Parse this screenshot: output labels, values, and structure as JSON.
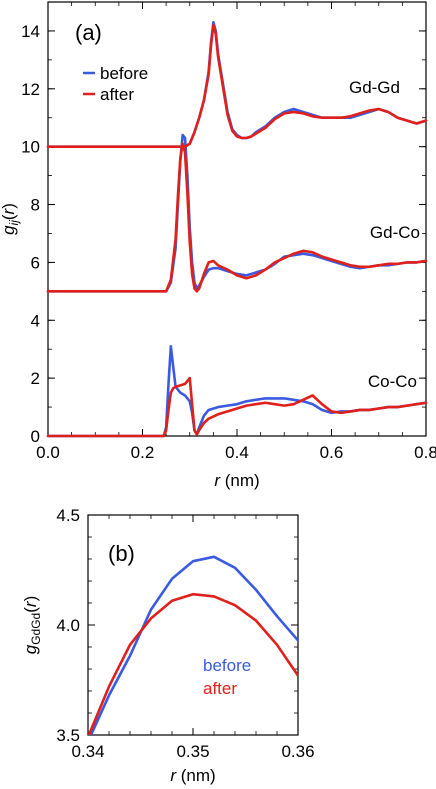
{
  "chart_data": [
    {
      "type": "line",
      "panel_label": "(a)",
      "xlabel": "r  (nm)",
      "ylabel": "g_ij(r)",
      "xlim": [
        0.0,
        0.8
      ],
      "ylim": [
        0,
        15
      ],
      "xticks": [
        "0.0",
        "0.2",
        "0.4",
        "0.6",
        "0.8"
      ],
      "xtick_values": [
        0.0,
        0.2,
        0.4,
        0.6,
        0.8
      ],
      "yticks": [
        "0",
        "2",
        "4",
        "6",
        "8",
        "10",
        "12",
        "14"
      ],
      "ytick_values": [
        0,
        2,
        4,
        6,
        8,
        10,
        12,
        14
      ],
      "legend": [
        "before",
        "after"
      ],
      "legend_position": "top-left",
      "colors": {
        "before": "#3a5be0",
        "after": "#e0201a"
      },
      "annotations": [
        "Gd-Gd",
        "Gd-Co",
        "Co-Co"
      ],
      "series": [
        {
          "name": "before",
          "pair": "Gd-Gd",
          "x": [
            0.0,
            0.29,
            0.3,
            0.31,
            0.32,
            0.33,
            0.34,
            0.345,
            0.35,
            0.355,
            0.36,
            0.37,
            0.38,
            0.39,
            0.4,
            0.41,
            0.42,
            0.43,
            0.44,
            0.46,
            0.48,
            0.5,
            0.52,
            0.54,
            0.56,
            0.58,
            0.6,
            0.62,
            0.64,
            0.66,
            0.68,
            0.7,
            0.72,
            0.74,
            0.76,
            0.78,
            0.8
          ],
          "y": [
            10,
            10,
            10.1,
            10.5,
            11.0,
            11.6,
            12.6,
            13.6,
            14.3,
            14.0,
            13.2,
            12.2,
            11.2,
            10.6,
            10.4,
            10.3,
            10.3,
            10.35,
            10.5,
            10.7,
            11.0,
            11.2,
            11.3,
            11.2,
            11.1,
            11.0,
            11.0,
            11.0,
            11.0,
            11.1,
            11.2,
            11.3,
            11.2,
            11.0,
            10.9,
            10.8,
            10.9
          ]
        },
        {
          "name": "after",
          "pair": "Gd-Gd",
          "x": [
            0.0,
            0.29,
            0.3,
            0.31,
            0.32,
            0.33,
            0.34,
            0.345,
            0.35,
            0.355,
            0.36,
            0.37,
            0.38,
            0.39,
            0.4,
            0.41,
            0.42,
            0.43,
            0.44,
            0.46,
            0.48,
            0.5,
            0.52,
            0.54,
            0.56,
            0.58,
            0.6,
            0.62,
            0.64,
            0.66,
            0.68,
            0.7,
            0.72,
            0.74,
            0.76,
            0.78,
            0.8
          ],
          "y": [
            10,
            10,
            10.1,
            10.5,
            11.0,
            11.6,
            12.5,
            13.5,
            14.2,
            13.9,
            13.1,
            12.1,
            11.1,
            10.55,
            10.35,
            10.3,
            10.3,
            10.35,
            10.45,
            10.65,
            10.95,
            11.15,
            11.2,
            11.15,
            11.05,
            11.0,
            11.0,
            11.0,
            11.05,
            11.15,
            11.25,
            11.3,
            11.2,
            11.0,
            10.9,
            10.8,
            10.9
          ]
        },
        {
          "name": "before",
          "pair": "Gd-Co",
          "x": [
            0.0,
            0.25,
            0.26,
            0.27,
            0.275,
            0.28,
            0.285,
            0.29,
            0.295,
            0.3,
            0.305,
            0.31,
            0.315,
            0.32,
            0.33,
            0.34,
            0.35,
            0.36,
            0.38,
            0.4,
            0.42,
            0.44,
            0.46,
            0.48,
            0.5,
            0.52,
            0.54,
            0.56,
            0.58,
            0.6,
            0.62,
            0.64,
            0.66,
            0.68,
            0.7,
            0.72,
            0.74,
            0.76,
            0.78,
            0.8
          ],
          "y": [
            5,
            5,
            5.3,
            6.5,
            8.0,
            9.5,
            10.4,
            10.3,
            9.0,
            7.2,
            6.0,
            5.3,
            5.1,
            5.2,
            5.5,
            5.75,
            5.8,
            5.8,
            5.7,
            5.6,
            5.55,
            5.65,
            5.75,
            5.95,
            6.2,
            6.25,
            6.3,
            6.25,
            6.15,
            6.05,
            5.95,
            5.85,
            5.8,
            5.85,
            5.9,
            5.9,
            5.95,
            6.0,
            6.0,
            6.05
          ]
        },
        {
          "name": "after",
          "pair": "Gd-Co",
          "x": [
            0.0,
            0.25,
            0.26,
            0.27,
            0.275,
            0.28,
            0.285,
            0.29,
            0.295,
            0.3,
            0.305,
            0.31,
            0.315,
            0.32,
            0.33,
            0.34,
            0.35,
            0.36,
            0.38,
            0.4,
            0.42,
            0.44,
            0.46,
            0.48,
            0.5,
            0.52,
            0.54,
            0.56,
            0.58,
            0.6,
            0.62,
            0.64,
            0.66,
            0.68,
            0.7,
            0.72,
            0.74,
            0.76,
            0.78,
            0.8
          ],
          "y": [
            5,
            5,
            5.4,
            6.8,
            8.3,
            9.6,
            10.1,
            9.8,
            8.4,
            6.7,
            5.6,
            5.1,
            5.0,
            5.1,
            5.6,
            6.0,
            6.05,
            5.9,
            5.75,
            5.55,
            5.45,
            5.55,
            5.75,
            6.0,
            6.15,
            6.3,
            6.4,
            6.35,
            6.2,
            6.1,
            6.0,
            5.9,
            5.85,
            5.85,
            5.9,
            5.95,
            5.95,
            6.0,
            6.0,
            6.05
          ]
        },
        {
          "name": "before",
          "pair": "Co-Co",
          "x": [
            0.0,
            0.245,
            0.25,
            0.255,
            0.26,
            0.265,
            0.27,
            0.28,
            0.29,
            0.3,
            0.305,
            0.31,
            0.315,
            0.32,
            0.33,
            0.34,
            0.36,
            0.38,
            0.4,
            0.42,
            0.44,
            0.46,
            0.48,
            0.5,
            0.52,
            0.54,
            0.56,
            0.58,
            0.6,
            0.62,
            0.64,
            0.66,
            0.68,
            0.7,
            0.72,
            0.74,
            0.76,
            0.78,
            0.8
          ],
          "y": [
            0,
            0,
            0.3,
            1.8,
            3.1,
            2.4,
            1.7,
            1.5,
            1.4,
            1.2,
            0.8,
            0.2,
            0.05,
            0.3,
            0.7,
            0.9,
            1.0,
            1.05,
            1.1,
            1.2,
            1.25,
            1.3,
            1.3,
            1.3,
            1.25,
            1.2,
            1.1,
            0.9,
            0.8,
            0.85,
            0.85,
            0.9,
            0.9,
            0.95,
            1.0,
            1.0,
            1.05,
            1.1,
            1.15
          ]
        },
        {
          "name": "after",
          "pair": "Co-Co",
          "x": [
            0.0,
            0.245,
            0.25,
            0.255,
            0.26,
            0.265,
            0.27,
            0.28,
            0.29,
            0.3,
            0.305,
            0.31,
            0.315,
            0.32,
            0.33,
            0.34,
            0.36,
            0.38,
            0.4,
            0.42,
            0.44,
            0.46,
            0.48,
            0.5,
            0.52,
            0.54,
            0.56,
            0.58,
            0.6,
            0.62,
            0.64,
            0.66,
            0.68,
            0.7,
            0.72,
            0.74,
            0.76,
            0.78,
            0.8
          ],
          "y": [
            0,
            0,
            0.2,
            0.9,
            1.5,
            1.65,
            1.7,
            1.75,
            1.8,
            2.0,
            1.1,
            0.2,
            0.05,
            0.2,
            0.45,
            0.6,
            0.75,
            0.85,
            0.95,
            1.05,
            1.1,
            1.15,
            1.1,
            1.05,
            1.1,
            1.25,
            1.4,
            1.1,
            0.85,
            0.8,
            0.85,
            0.9,
            0.9,
            0.95,
            1.0,
            1.0,
            1.05,
            1.1,
            1.15
          ]
        }
      ]
    },
    {
      "type": "line",
      "panel_label": "(b)",
      "xlabel": "r  (nm)",
      "ylabel": "g_GdGd(r)",
      "xlim": [
        0.34,
        0.36
      ],
      "ylim": [
        3.5,
        4.5
      ],
      "xticks": [
        "0.34",
        "0.35",
        "0.36"
      ],
      "xtick_values": [
        0.34,
        0.35,
        0.36
      ],
      "yticks": [
        "3.5",
        "4.0",
        "4.5"
      ],
      "ytick_values": [
        3.5,
        4.0,
        4.5
      ],
      "legend": [
        "before",
        "after"
      ],
      "legend_position": "bottom-center",
      "colors": {
        "before": "#3a5be0",
        "after": "#e0201a"
      },
      "series": [
        {
          "name": "before",
          "x": [
            0.34,
            0.342,
            0.344,
            0.346,
            0.348,
            0.35,
            0.352,
            0.354,
            0.356,
            0.358,
            0.36
          ],
          "y": [
            3.47,
            3.68,
            3.86,
            4.07,
            4.21,
            4.29,
            4.31,
            4.26,
            4.16,
            4.04,
            3.93
          ]
        },
        {
          "name": "after",
          "x": [
            0.34,
            0.342,
            0.344,
            0.346,
            0.348,
            0.35,
            0.352,
            0.354,
            0.356,
            0.358,
            0.36
          ],
          "y": [
            3.49,
            3.72,
            3.91,
            4.03,
            4.11,
            4.14,
            4.13,
            4.09,
            4.02,
            3.91,
            3.77
          ]
        }
      ]
    }
  ]
}
